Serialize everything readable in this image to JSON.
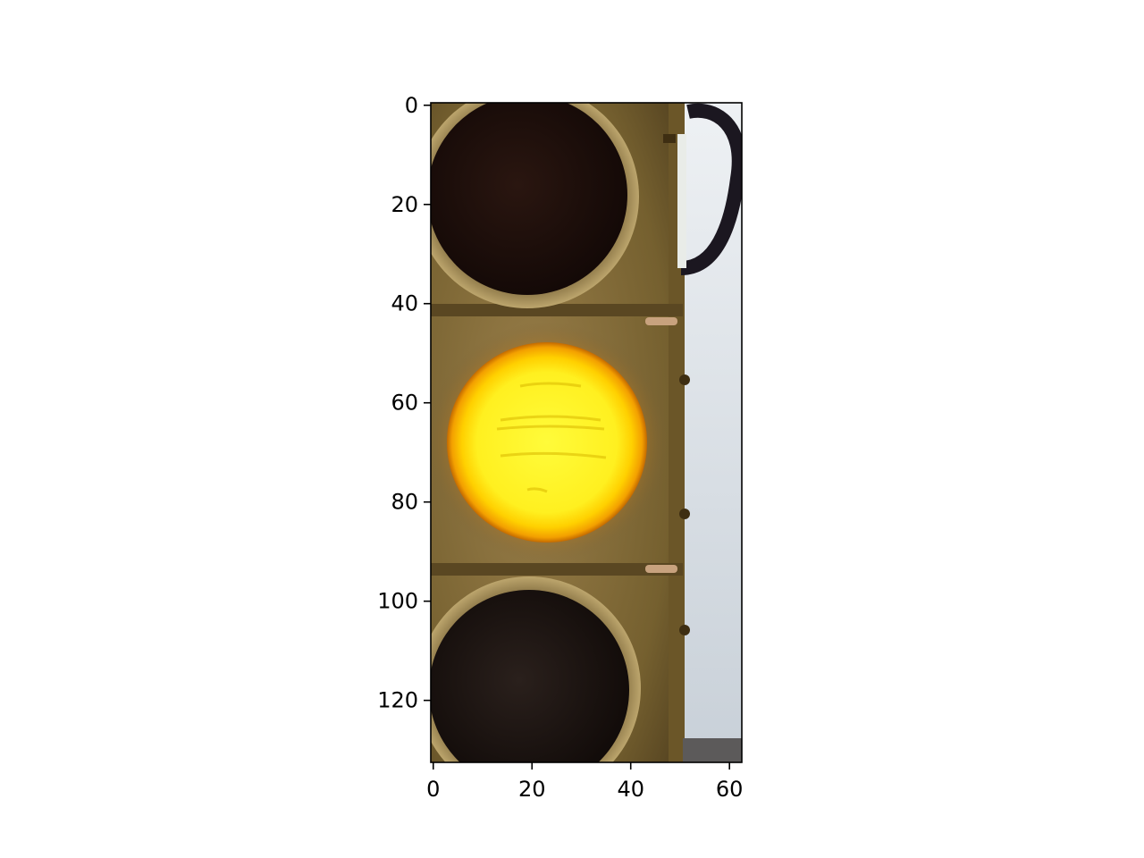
{
  "image": {
    "subject": "traffic-light",
    "lit_lamp": "amber",
    "lamps": [
      "red",
      "amber",
      "green"
    ]
  },
  "axes": {
    "xlim": [
      -0.5,
      62.5
    ],
    "ylim": [
      132.5,
      -0.5
    ],
    "x_ticks": [
      0,
      20,
      40,
      60
    ],
    "y_ticks": [
      0,
      20,
      40,
      60,
      80,
      100,
      120
    ],
    "x_tick_labels": [
      "0",
      "20",
      "40",
      "60"
    ],
    "y_tick_labels": [
      "0",
      "20",
      "40",
      "60",
      "80",
      "100",
      "120"
    ]
  },
  "colors": {
    "housing": "#7a6236",
    "housing_light": "#a88d58",
    "housing_dark": "#4a3a1c",
    "sky": "#d4dbe2",
    "lamp_off": "#1a0d08",
    "lamp_on_core": "#fff82a",
    "lamp_on_glow": "#f2a000",
    "cable": "#1b1720",
    "axis": "#000000"
  }
}
